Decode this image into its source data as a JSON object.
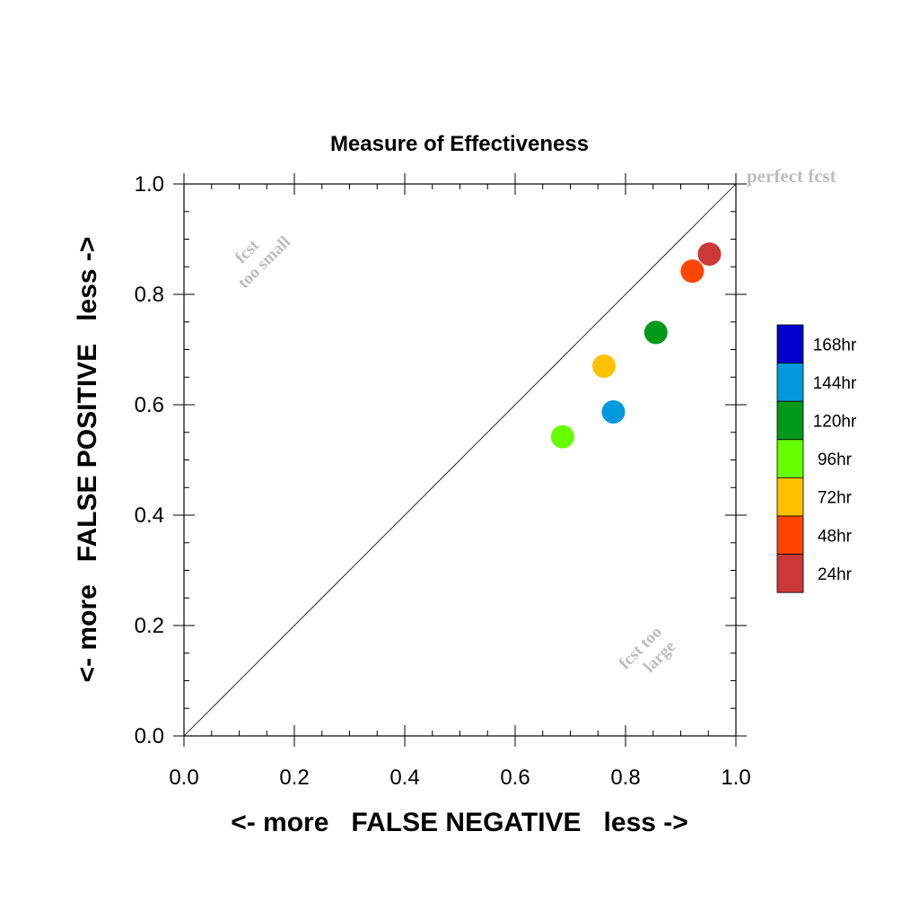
{
  "chart_data": {
    "type": "scatter",
    "title": "Measure of Effectiveness",
    "xlabel": "<- more   FALSE NEGATIVE   less ->",
    "ylabel": "<- more   FALSE POSITIVE   less ->",
    "xlim": [
      0.0,
      1.0
    ],
    "ylim": [
      0.0,
      1.0
    ],
    "x_ticks": [
      "0.0",
      "0.2",
      "0.4",
      "0.6",
      "0.8",
      "1.0"
    ],
    "y_ticks": [
      "0.0",
      "0.2",
      "0.4",
      "0.6",
      "0.8",
      "1.0"
    ],
    "grid": false,
    "diagonal_line": true,
    "annotations": {
      "perfect": "perfect fcst",
      "small_line1": "fcst",
      "small_line2": "too small",
      "large_line1": "fcst too",
      "large_line2": "large"
    },
    "annotation_color": "#bdbdbd",
    "series": [
      {
        "name": "24hr",
        "color": "#cc3838",
        "x": 0.952,
        "y": 0.873
      },
      {
        "name": "48hr",
        "color": "#ff4500",
        "x": 0.921,
        "y": 0.842
      },
      {
        "name": "72hr",
        "color": "#ffc000",
        "x": 0.761,
        "y": 0.67
      },
      {
        "name": "96hr",
        "color": "#66ff00",
        "x": 0.686,
        "y": 0.542
      },
      {
        "name": "120hr",
        "color": "#009a1a",
        "x": 0.855,
        "y": 0.731
      },
      {
        "name": "144hr",
        "color": "#0099dd",
        "x": 0.778,
        "y": 0.587
      },
      {
        "name": "168hr",
        "color": "#0000cc",
        "x": null,
        "y": null
      }
    ],
    "legend_order": [
      "168hr",
      "144hr",
      "120hr",
      "96hr",
      "72hr",
      "48hr",
      "24hr"
    ],
    "legend_placement": "right"
  }
}
